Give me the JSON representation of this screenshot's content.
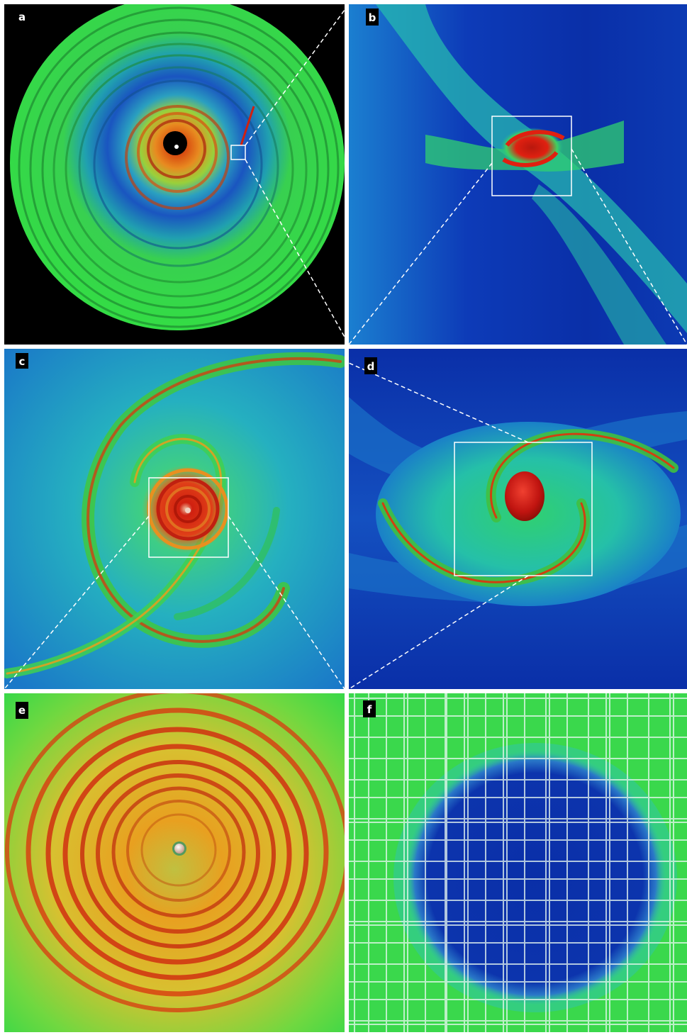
{
  "figure": {
    "description_labels": true,
    "panels": [
      {
        "id": "a",
        "label": "a"
      },
      {
        "id": "b",
        "label": "b"
      },
      {
        "id": "c",
        "label": "c"
      },
      {
        "id": "d",
        "label": "d"
      },
      {
        "id": "e",
        "label": "e"
      },
      {
        "id": "f",
        "label": "f"
      }
    ]
  },
  "colors": {
    "background_black": "#000000",
    "deep_blue": "#0a2fa8",
    "mid_blue": "#1f6fc6",
    "teal": "#22c4b2",
    "green": "#33dd44",
    "yellow": "#e8d020",
    "orange": "#e8801a",
    "red": "#d81c14",
    "zoom_box": "#ffffff"
  }
}
